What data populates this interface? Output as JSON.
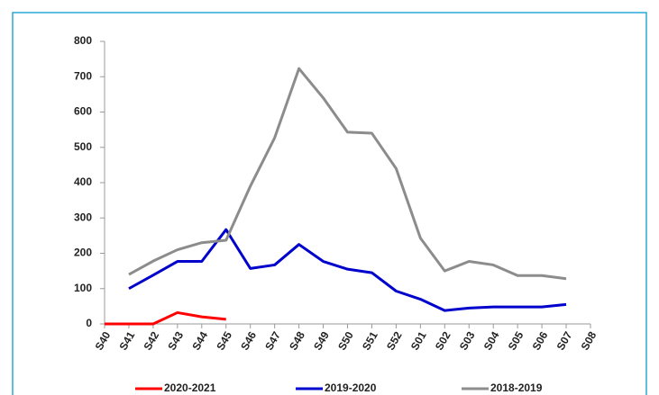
{
  "chart_data": {
    "type": "line",
    "categories": [
      "S40",
      "S41",
      "S42",
      "S43",
      "S44",
      "S45",
      "S46",
      "S47",
      "S48",
      "S49",
      "S50",
      "S51",
      "S52",
      "S01",
      "S02",
      "S03",
      "S04",
      "S05",
      "S06",
      "S07",
      "S08"
    ],
    "series": [
      {
        "name": "2020-2021",
        "color": "#ff0000",
        "values": [
          0,
          0,
          0,
          32,
          20,
          13,
          null,
          null,
          null,
          null,
          null,
          null,
          null,
          null,
          null,
          null,
          null,
          null,
          null,
          null,
          null
        ]
      },
      {
        "name": "2019-2020",
        "color": "#0000cc",
        "values": [
          null,
          100,
          138,
          177,
          177,
          267,
          157,
          167,
          225,
          177,
          155,
          145,
          93,
          70,
          38,
          45,
          48,
          48,
          48,
          55,
          null
        ]
      },
      {
        "name": "2018-2019",
        "color": "#8c8c8c",
        "values": [
          null,
          140,
          178,
          210,
          230,
          237,
          390,
          527,
          723,
          640,
          543,
          540,
          440,
          243,
          150,
          177,
          167,
          137,
          137,
          128,
          null
        ]
      }
    ],
    "ylim": [
      0,
      800
    ],
    "yticks": [
      0,
      100,
      200,
      300,
      400,
      500,
      600,
      700,
      800
    ],
    "grid": false,
    "legend": "bottom"
  }
}
